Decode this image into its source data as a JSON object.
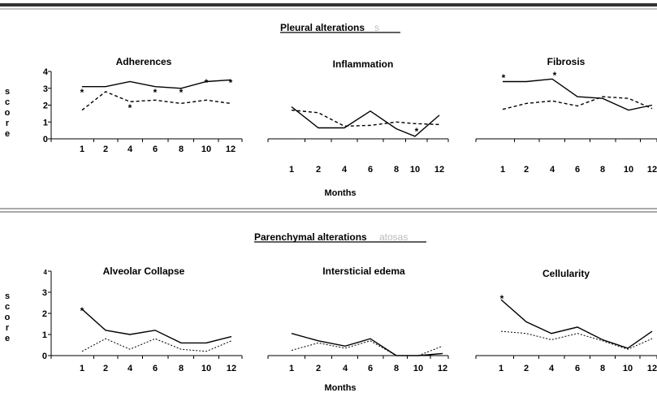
{
  "sections": [
    {
      "title": "Pleural alterations",
      "ghost": "s"
    },
    {
      "title": "Parenchymal alterations",
      "ghost": "atosas"
    }
  ],
  "months_label": "Months",
  "score_label": "score",
  "chart_data": [
    {
      "type": "line",
      "title": "Adherences",
      "categories": [
        "1",
        "2",
        "4",
        "6",
        "8",
        "10",
        "12"
      ],
      "ylim": [
        0,
        4
      ],
      "yticks": [
        0,
        1,
        2,
        3,
        4
      ],
      "series": [
        {
          "style": "solid",
          "values": [
            3.1,
            3.1,
            3.4,
            3.1,
            3.0,
            3.4,
            3.5
          ]
        },
        {
          "style": "dashed",
          "values": [
            1.7,
            2.8,
            2.2,
            2.3,
            2.1,
            2.3,
            2.1
          ]
        }
      ],
      "annotations": [
        "*",
        "*",
        "*",
        "*",
        "*",
        "*"
      ]
    },
    {
      "type": "line",
      "title": "Inflammation",
      "categories": [
        "1",
        "2",
        "4",
        "6",
        "8",
        "10",
        "12"
      ],
      "ylim": [
        0,
        4
      ],
      "series": [
        {
          "style": "solid",
          "values": [
            1.9,
            0.65,
            0.65,
            1.65,
            0.6,
            0.15,
            1.4
          ]
        },
        {
          "style": "dashed",
          "values": [
            1.7,
            1.55,
            0.75,
            0.8,
            1.0,
            0.9,
            0.85
          ]
        }
      ],
      "annotations": [
        "*"
      ]
    },
    {
      "type": "line",
      "title": "Fibrosis",
      "categories": [
        "1",
        "2",
        "4",
        "6",
        "8",
        "10",
        "12"
      ],
      "ylim": [
        0,
        4
      ],
      "series": [
        {
          "style": "solid",
          "values": [
            3.4,
            3.4,
            3.55,
            2.5,
            2.4,
            1.7,
            2.0
          ]
        },
        {
          "style": "dashed",
          "values": [
            1.75,
            2.1,
            2.25,
            1.95,
            2.5,
            2.4,
            1.8
          ]
        }
      ],
      "annotations": [
        "*",
        "*"
      ]
    },
    {
      "type": "line",
      "title": "Alveolar Collapse",
      "categories": [
        "1",
        "2",
        "4",
        "6",
        "8",
        "10",
        "12"
      ],
      "ylim": [
        0,
        4
      ],
      "yticks": [
        0,
        1,
        2,
        3,
        4
      ],
      "series": [
        {
          "style": "solid",
          "values": [
            2.2,
            1.2,
            1.0,
            1.2,
            0.6,
            0.6,
            0.9
          ]
        },
        {
          "style": "dotted",
          "values": [
            0.2,
            0.8,
            0.3,
            0.8,
            0.3,
            0.2,
            0.7
          ]
        }
      ],
      "annotations": [
        "*"
      ]
    },
    {
      "type": "line",
      "title": "Intersticial edema",
      "categories": [
        "1",
        "2",
        "4",
        "6",
        "8",
        "10",
        "12"
      ],
      "ylim": [
        0,
        4
      ],
      "series": [
        {
          "style": "solid",
          "values": [
            1.05,
            0.7,
            0.45,
            0.8,
            0.0,
            0.0,
            0.1
          ]
        },
        {
          "style": "dotted",
          "values": [
            0.25,
            0.6,
            0.35,
            0.7,
            0.0,
            0.0,
            0.45
          ]
        }
      ],
      "annotations": []
    },
    {
      "type": "line",
      "title": "Cellularity",
      "categories": [
        "1",
        "2",
        "4",
        "6",
        "8",
        "10",
        "12"
      ],
      "ylim": [
        0,
        4
      ],
      "series": [
        {
          "style": "solid",
          "values": [
            2.65,
            1.6,
            1.05,
            1.35,
            0.75,
            0.35,
            1.15
          ]
        },
        {
          "style": "dotted",
          "values": [
            1.15,
            1.05,
            0.75,
            1.05,
            0.7,
            0.3,
            0.8
          ]
        }
      ],
      "annotations": [
        "*"
      ]
    }
  ]
}
